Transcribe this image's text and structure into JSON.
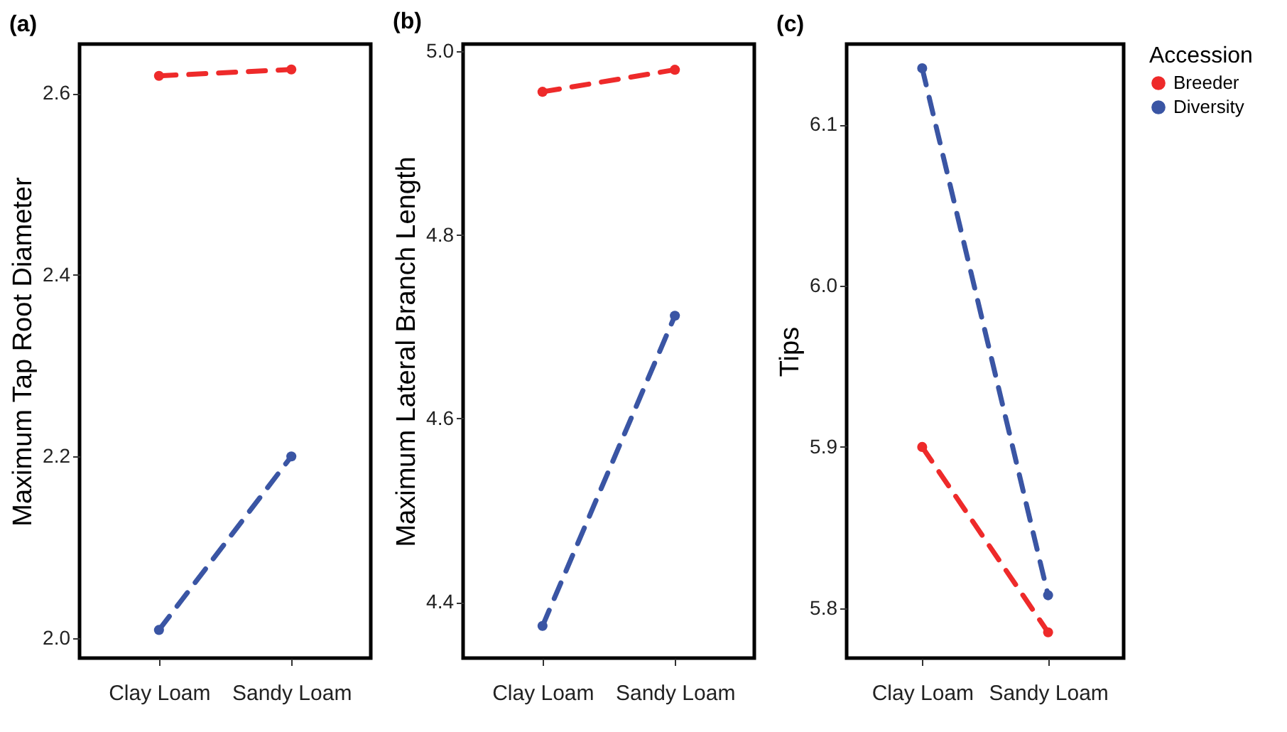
{
  "chart_data": [
    {
      "type": "line",
      "title": "(a)",
      "ylabel": "Maximum Tap Root Diameter",
      "categories": [
        "Clay Loam",
        "Sandy Loam"
      ],
      "series": [
        {
          "color": "#ee2a2a",
          "values": [
            2.619,
            2.626
          ]
        },
        {
          "color": "#3a55a4",
          "values": [
            2.009,
            2.2
          ]
        }
      ],
      "ylim": [
        1.978,
        2.654
      ],
      "yticks": [
        {
          "value": 2,
          "label": "2.0"
        },
        2.2,
        2.4,
        2.6
      ],
      "grid": false,
      "marker": "circle",
      "line_style": "dashed"
    },
    {
      "type": "line",
      "title": "(b)",
      "ylabel": "Maximum Lateral Branch Length",
      "categories": [
        "Clay Loam",
        "Sandy Loam"
      ],
      "series": [
        {
          "color": "#ee2a2a",
          "values": [
            4.956,
            4.98
          ]
        },
        {
          "color": "#3a55a4",
          "values": [
            4.374,
            4.712
          ]
        }
      ],
      "ylim": [
        4.339,
        5.008
      ],
      "yticks": [
        4.4,
        4.6,
        4.8,
        {
          "value": 5,
          "label": "5.0"
        }
      ],
      "grid": false,
      "marker": "circle",
      "line_style": "dashed"
    },
    {
      "type": "line",
      "title": "(c)",
      "ylabel": "Tips",
      "legend_title": "Accession",
      "categories": [
        "Clay Loam",
        "Sandy Loam"
      ],
      "series": [
        {
          "name": "Breeder",
          "color": "#ee2a2a",
          "values": [
            5.9,
            5.785
          ]
        },
        {
          "name": "Diversity",
          "color": "#3a55a4",
          "values": [
            6.135,
            5.808
          ]
        }
      ],
      "ylim": [
        5.769,
        6.15
      ],
      "yticks": [
        5.8,
        5.9,
        {
          "value": 6,
          "label": "6.0"
        },
        6.1
      ],
      "grid": false,
      "legend": "right",
      "marker": "circle",
      "line_style": "dashed"
    }
  ]
}
